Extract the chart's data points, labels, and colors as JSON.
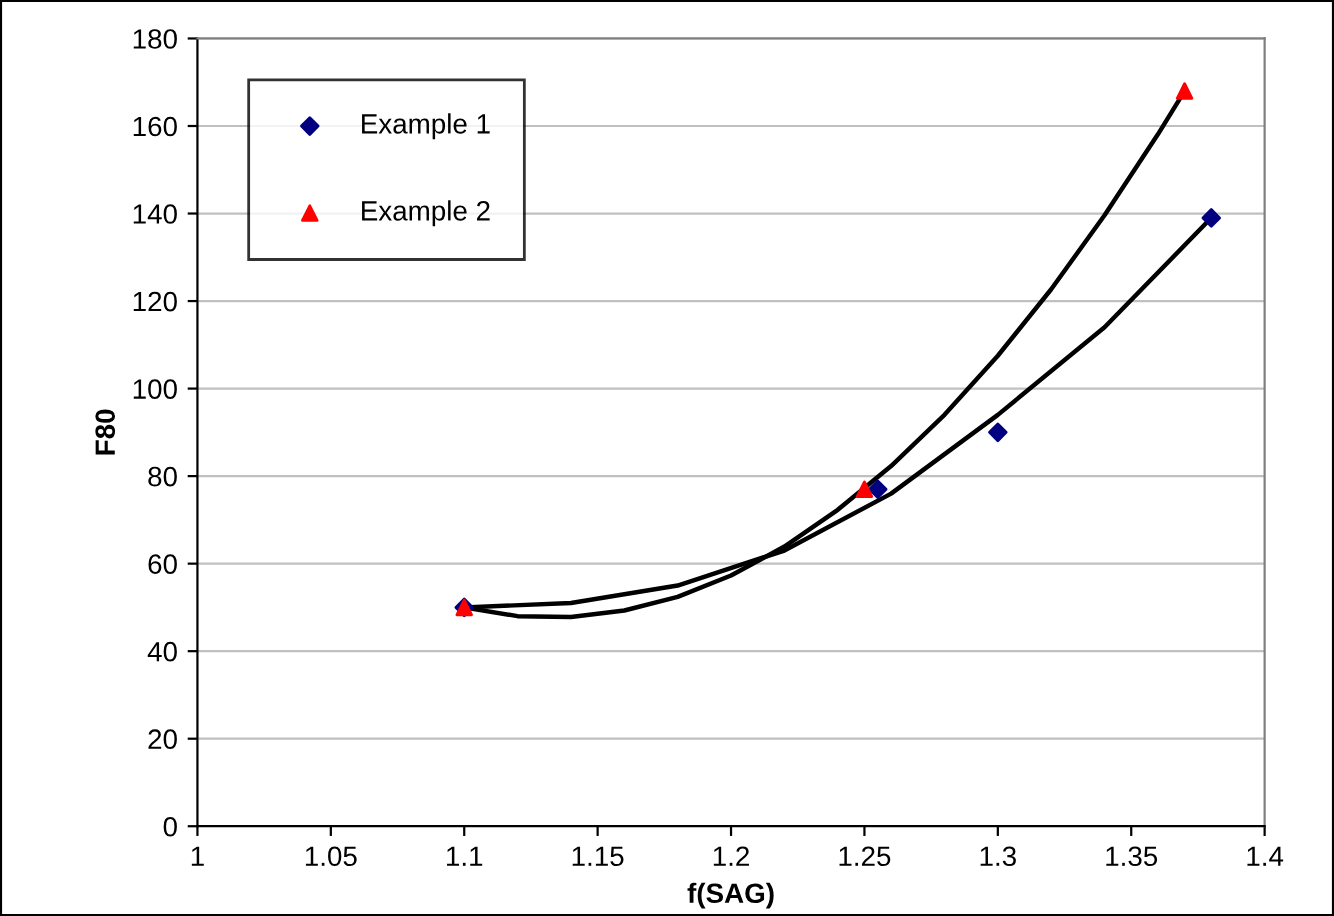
{
  "chart_data": {
    "type": "scatter",
    "xlabel": "f(SAG)",
    "ylabel": "F80",
    "xlim": [
      1,
      1.4
    ],
    "xticks": [
      1,
      1.05,
      1.1,
      1.15,
      1.2,
      1.25,
      1.3,
      1.35,
      1.4
    ],
    "ylim": [
      0,
      180
    ],
    "yticks": [
      0,
      20,
      40,
      60,
      80,
      100,
      120,
      140,
      160,
      180
    ],
    "grid": "y",
    "legend": "top left",
    "series": [
      {
        "name": "Example 1",
        "color": "#000080",
        "marker": "diamond",
        "x": [
          1.1,
          1.255,
          1.3,
          1.38
        ],
        "values": [
          50,
          77,
          90,
          139
        ]
      },
      {
        "name": "Example 2",
        "color": "#ff0000",
        "marker": "triangle",
        "x": [
          1.1,
          1.25,
          1.37
        ],
        "values": [
          50,
          77,
          168
        ]
      },
      {
        "type": "line",
        "color": "#000000",
        "marker": "none",
        "x": [
          1.1,
          1.14,
          1.18,
          1.22,
          1.26,
          1.3,
          1.34,
          1.38
        ],
        "values": [
          50,
          51,
          55,
          63,
          76,
          94,
          114,
          139
        ]
      },
      {
        "type": "line",
        "color": "#000000",
        "marker": "none",
        "x": [
          1.1,
          1.12,
          1.14,
          1.16,
          1.18,
          1.2,
          1.22,
          1.24,
          1.26,
          1.28,
          1.3,
          1.32,
          1.34,
          1.36,
          1.37
        ],
        "values": [
          50,
          48,
          47.8,
          49.3,
          52.4,
          57.3,
          63.9,
          72.3,
          82.3,
          94,
          107.5,
          122.7,
          139.6,
          158.1,
          168
        ]
      }
    ]
  }
}
